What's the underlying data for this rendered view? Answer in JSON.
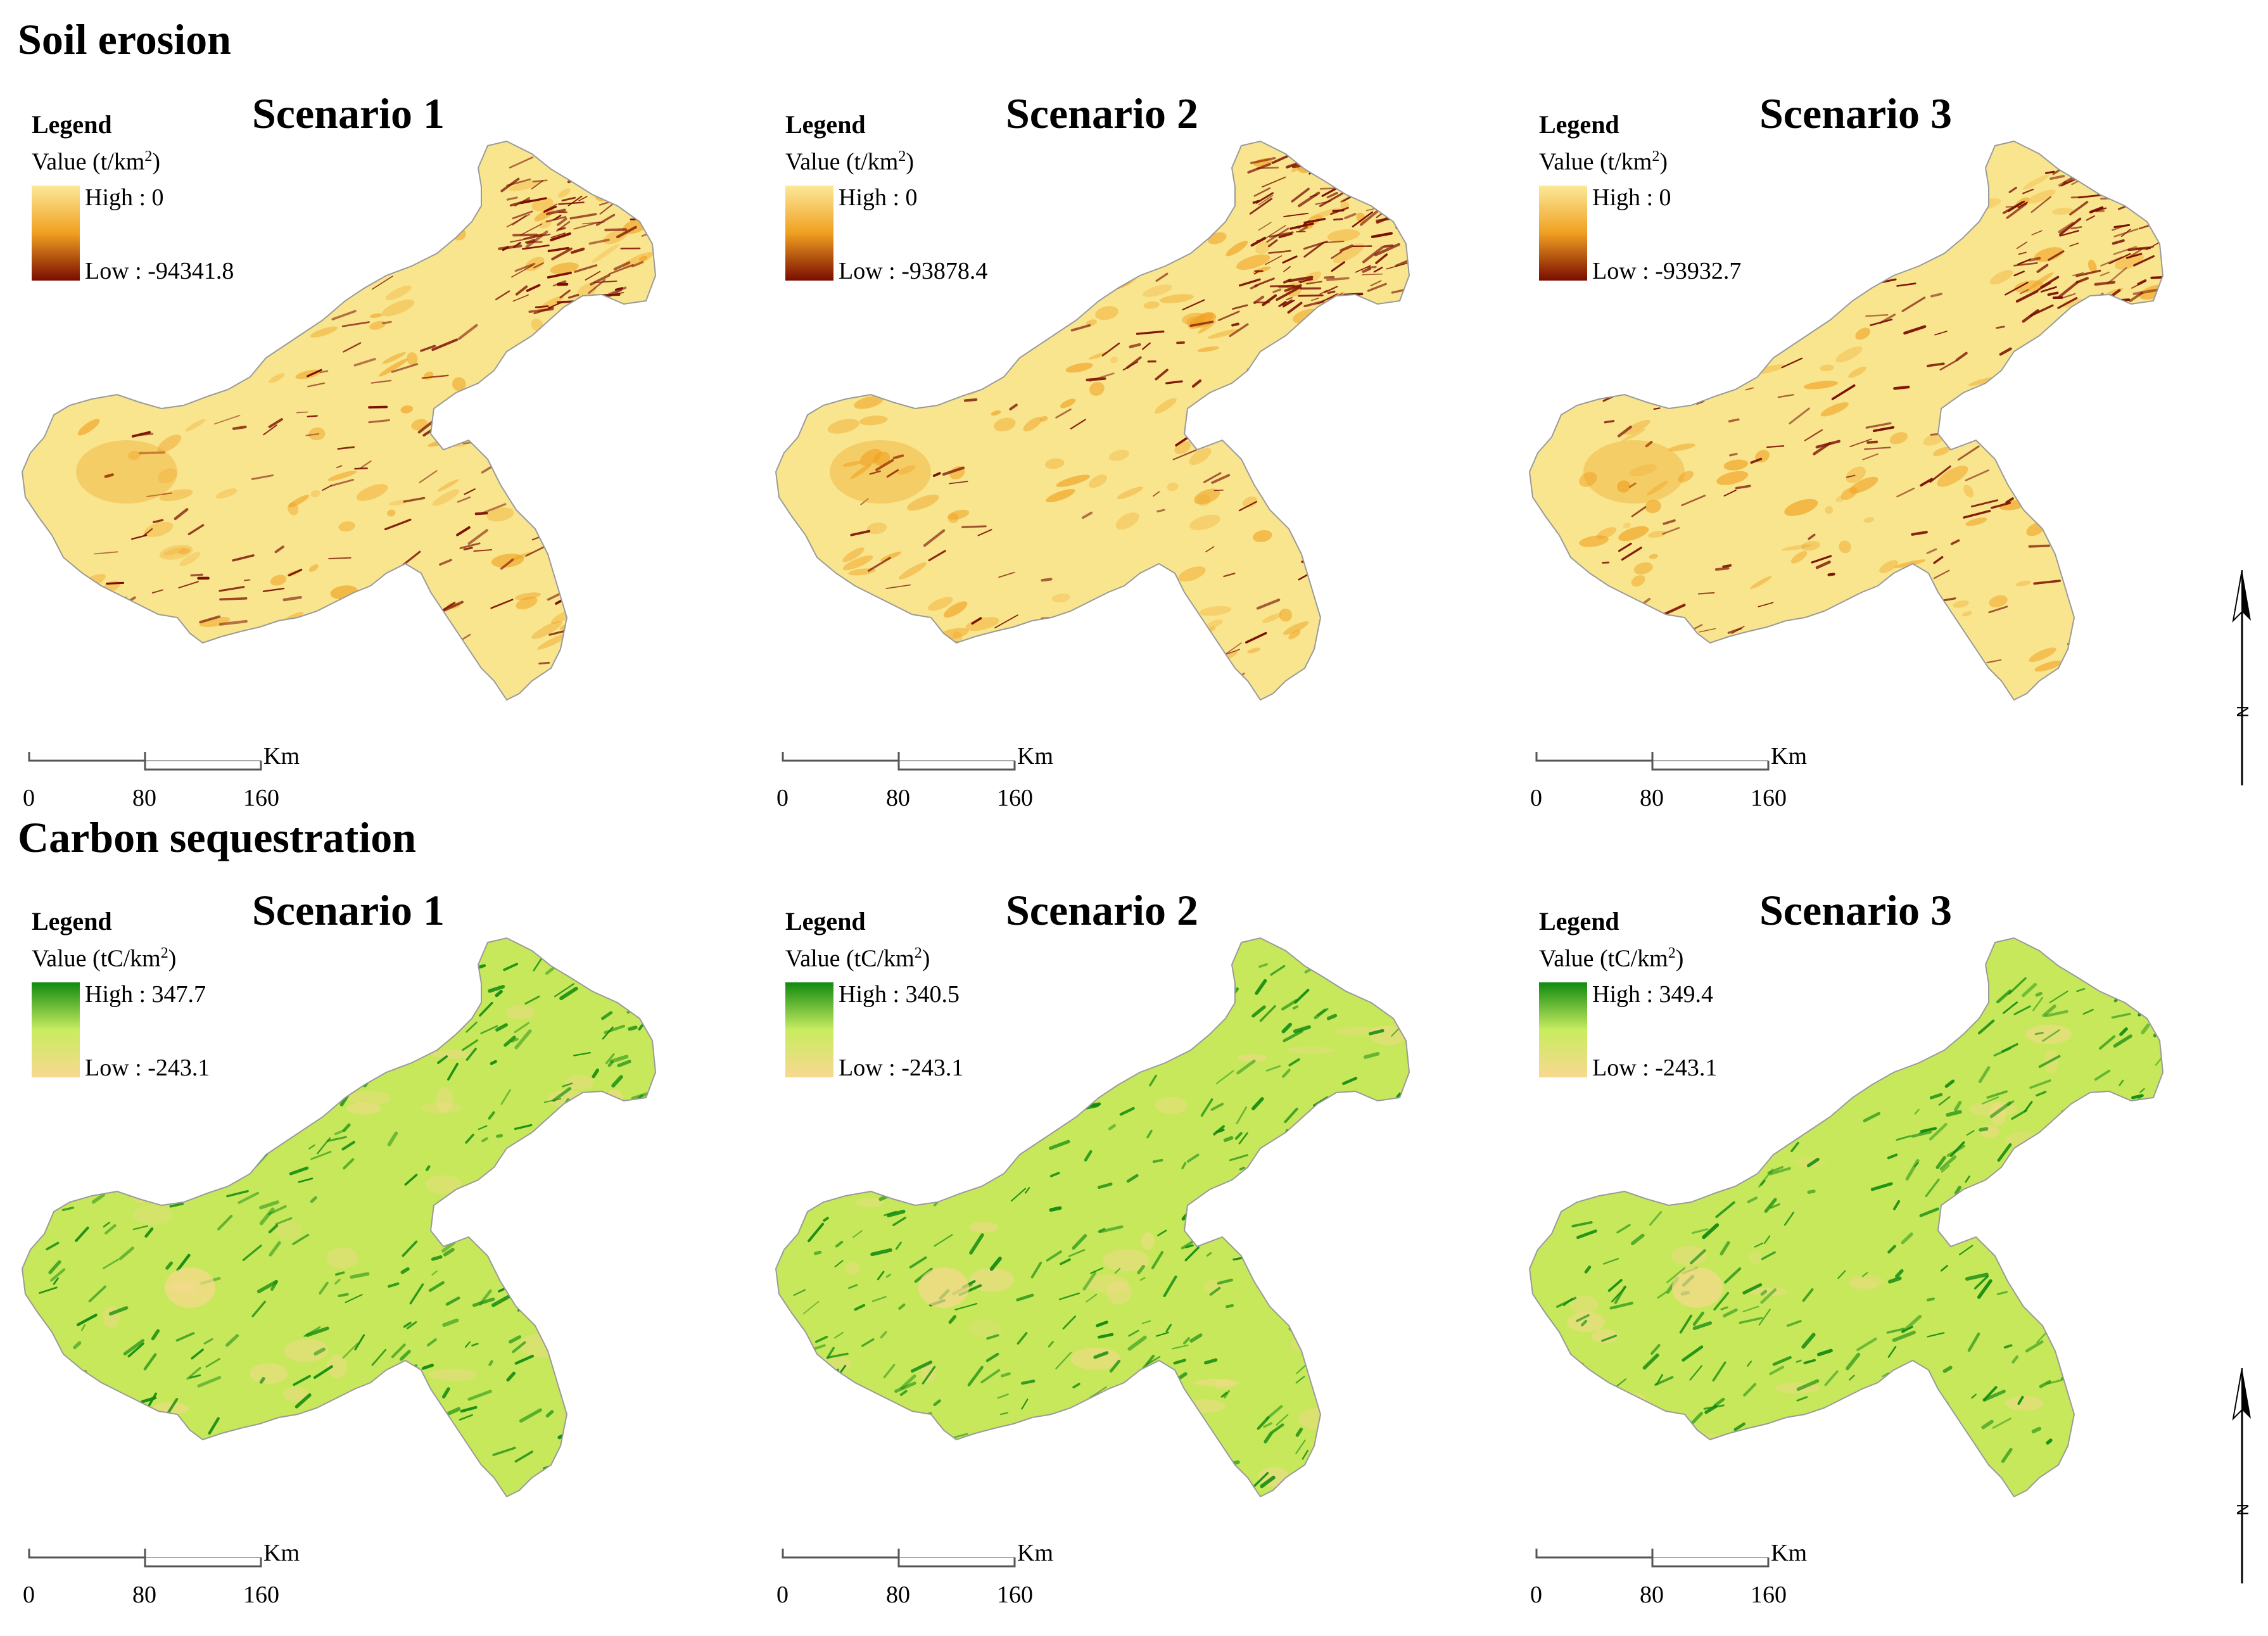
{
  "sections": [
    {
      "title": "Soil erosion",
      "scheme": "erosion",
      "colors": {
        "high": "#fbe99a",
        "mid": "#f0a020",
        "low": "#7a0c00",
        "base": "#f8e58e"
      },
      "panels": [
        {
          "scenario": "Scenario 1",
          "legend_title": "Legend",
          "value_prefix": "Value (t/km",
          "value_sup": "2",
          "value_suffix": ")",
          "high": "High : 0",
          "low": "Low : -94341.8"
        },
        {
          "scenario": "Scenario 2",
          "legend_title": "Legend",
          "value_prefix": "Value (t/km",
          "value_sup": "2",
          "value_suffix": ")",
          "high": "High : 0",
          "low": "Low : -93878.4"
        },
        {
          "scenario": "Scenario 3",
          "legend_title": "Legend",
          "value_prefix": "Value (t/km",
          "value_sup": "2",
          "value_suffix": ")",
          "high": "High : 0",
          "low": "Low : -93932.7"
        }
      ]
    },
    {
      "title": "Carbon sequestration",
      "scheme": "carbon",
      "colors": {
        "high": "#108a10",
        "mid": "#c8ec60",
        "low": "#f8d890",
        "base": "#c6e85a"
      },
      "panels": [
        {
          "scenario": "Scenario 1",
          "legend_title": "Legend",
          "value_prefix": "Value (tC/km",
          "value_sup": "2",
          "value_suffix": ")",
          "high": "High : 347.7",
          "low": "Low : -243.1"
        },
        {
          "scenario": "Scenario 2",
          "legend_title": "Legend",
          "value_prefix": "Value (tC/km",
          "value_sup": "2",
          "value_suffix": ")",
          "high": "High : 340.5",
          "low": "Low : -243.1"
        },
        {
          "scenario": "Scenario 3",
          "legend_title": "Legend",
          "value_prefix": "Value (tC/km",
          "value_sup": "2",
          "value_suffix": ")",
          "high": "High : 349.4",
          "low": "Low : -243.1"
        }
      ]
    }
  ],
  "scale_bar": {
    "ticks": [
      "0",
      "80",
      "160"
    ],
    "unit": "Km"
  },
  "north_arrow": {
    "label": "N",
    "icon": "north-arrow-icon"
  }
}
